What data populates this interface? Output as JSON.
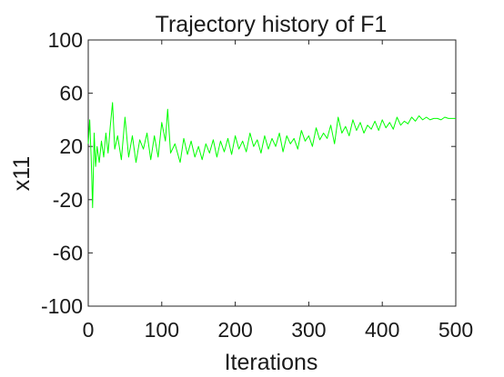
{
  "chart_data": {
    "type": "line",
    "title": "Trajectory history of F1",
    "xlabel": "Iterations",
    "ylabel": "x11",
    "xlim": [
      0,
      500
    ],
    "ylim": [
      -100,
      100
    ],
    "xticks": [
      0,
      100,
      200,
      300,
      400,
      500
    ],
    "yticks": [
      -100,
      -60,
      -20,
      20,
      60,
      100
    ],
    "xtick_labels": [
      "0",
      "100",
      "200",
      "300",
      "400",
      "500"
    ],
    "ytick_labels": [
      "-100",
      "-60",
      "-20",
      "20",
      "60",
      "100"
    ],
    "grid": false,
    "line_color": "#00ff00",
    "series": [
      {
        "x": [
          0,
          2,
          4,
          6,
          8,
          10,
          12,
          15,
          18,
          21,
          24,
          27,
          30,
          33,
          36,
          40,
          45,
          50,
          55,
          60,
          65,
          70,
          75,
          80,
          85,
          90,
          95,
          100,
          105,
          108,
          112,
          118,
          125,
          130,
          135,
          140,
          145,
          150,
          155,
          160,
          165,
          170,
          175,
          180,
          185,
          190,
          195,
          200,
          205,
          210,
          215,
          220,
          225,
          230,
          235,
          240,
          245,
          250,
          255,
          260,
          265,
          270,
          275,
          280,
          285,
          290,
          295,
          300,
          305,
          310,
          315,
          320,
          325,
          330,
          335,
          340,
          345,
          350,
          355,
          360,
          365,
          370,
          375,
          380,
          385,
          390,
          395,
          400,
          405,
          410,
          415,
          420,
          425,
          430,
          435,
          440,
          445,
          450,
          455,
          460,
          465,
          470,
          475,
          480,
          485,
          490,
          495,
          500
        ],
        "y": [
          22,
          40,
          12,
          -26,
          30,
          5,
          20,
          8,
          24,
          12,
          30,
          15,
          35,
          53,
          18,
          28,
          10,
          42,
          12,
          28,
          8,
          25,
          18,
          30,
          10,
          28,
          12,
          38,
          24,
          48,
          15,
          22,
          8,
          26,
          14,
          24,
          12,
          20,
          10,
          22,
          15,
          25,
          12,
          24,
          16,
          26,
          14,
          28,
          18,
          24,
          16,
          30,
          20,
          25,
          15,
          28,
          18,
          26,
          20,
          30,
          16,
          28,
          22,
          26,
          18,
          32,
          24,
          28,
          20,
          34,
          25,
          30,
          26,
          36,
          22,
          42,
          30,
          35,
          28,
          40,
          32,
          38,
          30,
          36,
          33,
          39,
          32,
          40,
          34,
          38,
          33,
          42,
          36,
          39,
          37,
          42,
          39,
          43,
          40,
          42,
          40,
          41,
          41,
          40,
          42,
          41,
          41,
          41
        ]
      }
    ]
  }
}
